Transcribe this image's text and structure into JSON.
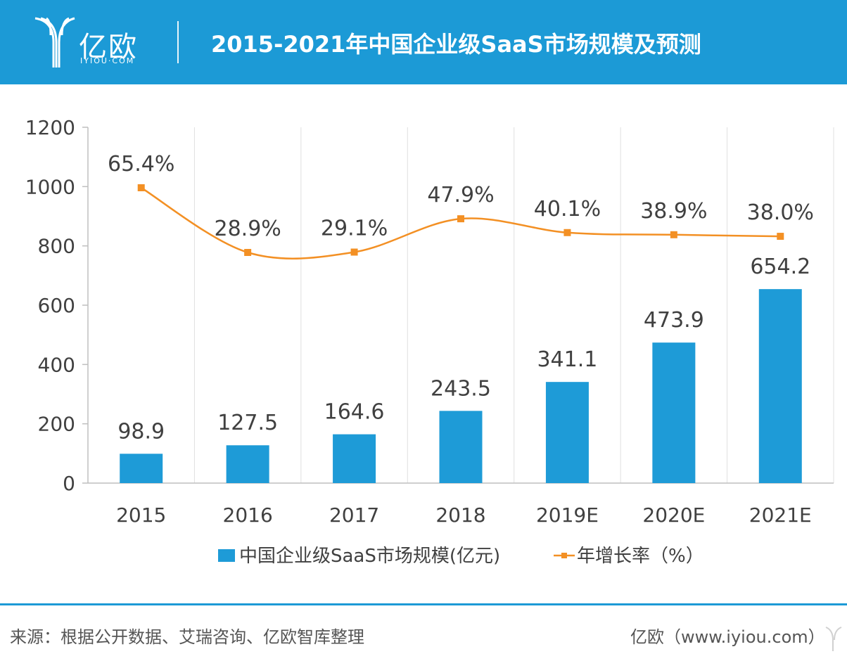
{
  "header": {
    "logo_text": "亿欧",
    "logo_sub": "IYIOU·COM",
    "title": "2015-2021年中国企业级SaaS市场规模及预测"
  },
  "colors": {
    "brand": "#1c9ad6",
    "bar": "#1e9bd7",
    "line": "#f39024",
    "axis": "#bfbfbf",
    "text": "#404040"
  },
  "chart_data": {
    "type": "bar+line",
    "title": "2015-2021年中国企业级SaaS市场规模及预测",
    "categories": [
      "2015",
      "2016",
      "2017",
      "2018",
      "2019E",
      "2020E",
      "2021E"
    ],
    "ylim": [
      0,
      1200
    ],
    "yticks": [
      0,
      200,
      400,
      600,
      800,
      1000,
      1200
    ],
    "ytick_labels": [
      "0",
      "200",
      "400",
      "600",
      "800",
      "1000",
      "1200"
    ],
    "grid": "vertical",
    "series": [
      {
        "name": "中国企业级SaaS市场规模(亿元)",
        "type": "bar",
        "values": [
          98.9,
          127.5,
          164.6,
          243.5,
          341.1,
          473.9,
          654.2
        ],
        "labels": [
          "98.9",
          "127.5",
          "164.6",
          "243.5",
          "341.1",
          "473.9",
          "654.2"
        ]
      },
      {
        "name": "年增长率（%）",
        "type": "line",
        "values": [
          65.4,
          28.9,
          29.1,
          47.9,
          40.1,
          38.9,
          38.0
        ],
        "labels": [
          "65.4%",
          "28.9%",
          "29.1%",
          "47.9%",
          "40.1%",
          "38.9%",
          "38.0%"
        ]
      }
    ],
    "legend": {
      "placement": "bottom",
      "entries": [
        "中国企业级SaaS市场规模(亿元)",
        "年增长率（%）"
      ]
    }
  },
  "footer": {
    "source": "来源：根据公开数据、艾瑞咨询、亿欧智库整理",
    "site": "亿欧（www.iyiou.com）"
  }
}
